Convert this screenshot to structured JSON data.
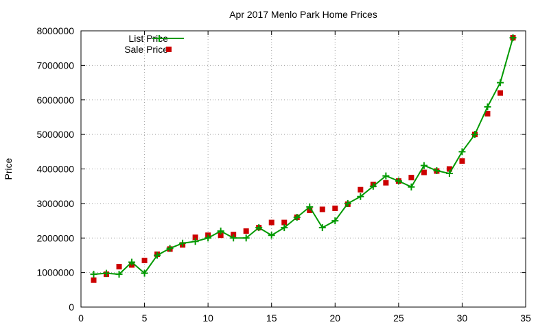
{
  "chart_data": {
    "type": "line",
    "title": "Apr 2017 Menlo Park Home Prices",
    "xlabel": "",
    "ylabel": "Price",
    "xlim": [
      0,
      35
    ],
    "ylim": [
      0,
      8000000
    ],
    "x_ticks": [
      0,
      5,
      10,
      15,
      20,
      25,
      30,
      35
    ],
    "y_ticks": [
      0,
      1000000,
      2000000,
      3000000,
      4000000,
      5000000,
      6000000,
      7000000,
      8000000
    ],
    "grid": true,
    "legend_position": "top-left",
    "series": [
      {
        "name": "List Price",
        "style": "line+plus",
        "color": "#009900",
        "x": [
          1,
          2,
          3,
          4,
          5,
          6,
          7,
          8,
          9,
          10,
          11,
          12,
          13,
          14,
          15,
          16,
          17,
          18,
          19,
          20,
          21,
          22,
          23,
          24,
          25,
          26,
          27,
          28,
          29,
          30,
          31,
          32,
          33,
          34
        ],
        "values": [
          950000,
          980000,
          950000,
          1300000,
          980000,
          1500000,
          1700000,
          1850000,
          1900000,
          2000000,
          2200000,
          2000000,
          2000000,
          2300000,
          2080000,
          2300000,
          2600000,
          2900000,
          2300000,
          2500000,
          3000000,
          3200000,
          3500000,
          3800000,
          3650000,
          3480000,
          4100000,
          3950000,
          3870000,
          4500000,
          5000000,
          5800000,
          6500000,
          7800000
        ]
      },
      {
        "name": "Sale Price",
        "style": "square",
        "color": "#cc0000",
        "x": [
          1,
          2,
          3,
          4,
          5,
          6,
          7,
          8,
          9,
          10,
          11,
          12,
          13,
          14,
          15,
          16,
          17,
          18,
          19,
          20,
          21,
          22,
          23,
          24,
          25,
          26,
          27,
          28,
          29,
          30,
          31,
          32,
          33,
          34
        ],
        "values": [
          780000,
          950000,
          1170000,
          1220000,
          1350000,
          1530000,
          1680000,
          1800000,
          2020000,
          2080000,
          2080000,
          2100000,
          2200000,
          2300000,
          2450000,
          2450000,
          2600000,
          2800000,
          2830000,
          2860000,
          2980000,
          3400000,
          3550000,
          3600000,
          3650000,
          3750000,
          3900000,
          3940000,
          4000000,
          4230000,
          5000000,
          5600000,
          6200000,
          7800000
        ]
      }
    ]
  }
}
